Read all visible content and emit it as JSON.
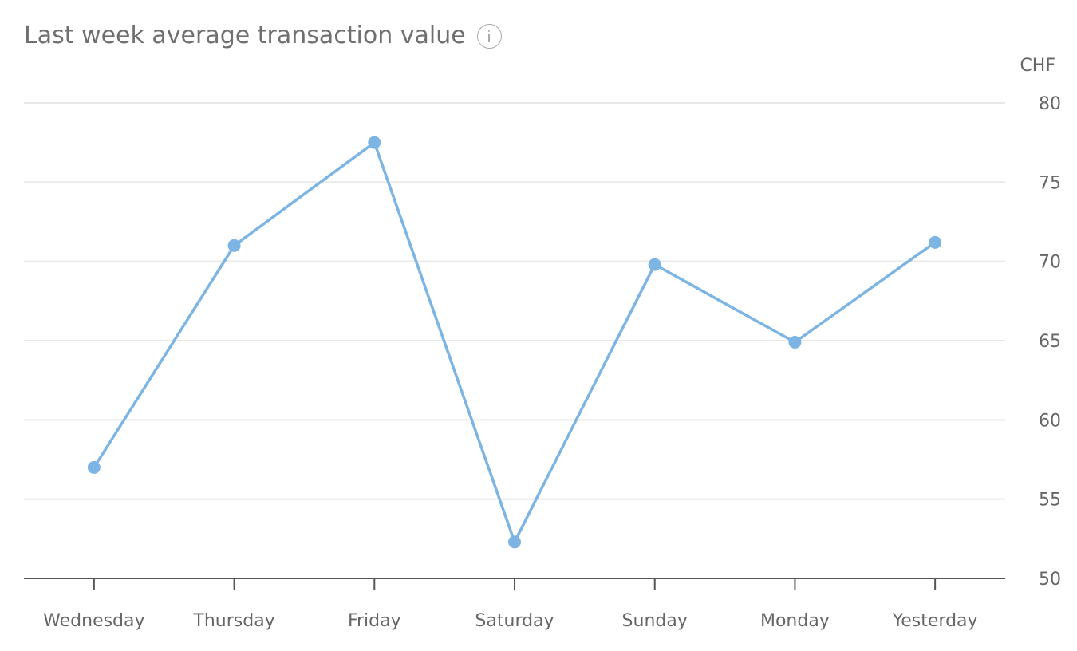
{
  "title": "Last week average transaction value",
  "icons": {
    "info": "info-icon"
  },
  "chart_data": {
    "type": "line",
    "title": "Last week average transaction value",
    "unit_label": "CHF",
    "categories": [
      "Wednesday",
      "Thursday",
      "Friday",
      "Saturday",
      "Sunday",
      "Monday",
      "Yesterday"
    ],
    "series": [
      {
        "values": [
          57.0,
          71.0,
          77.5,
          52.3,
          69.8,
          64.9,
          71.2
        ]
      }
    ],
    "ylim": [
      50,
      80
    ],
    "yticks": [
      50,
      55,
      60,
      65,
      70,
      75,
      80
    ],
    "y_axis_position": "right",
    "grid": true,
    "line_color": "#7cb5e4",
    "grid_color": "#e8e8e8",
    "axis_color": "#555555"
  }
}
